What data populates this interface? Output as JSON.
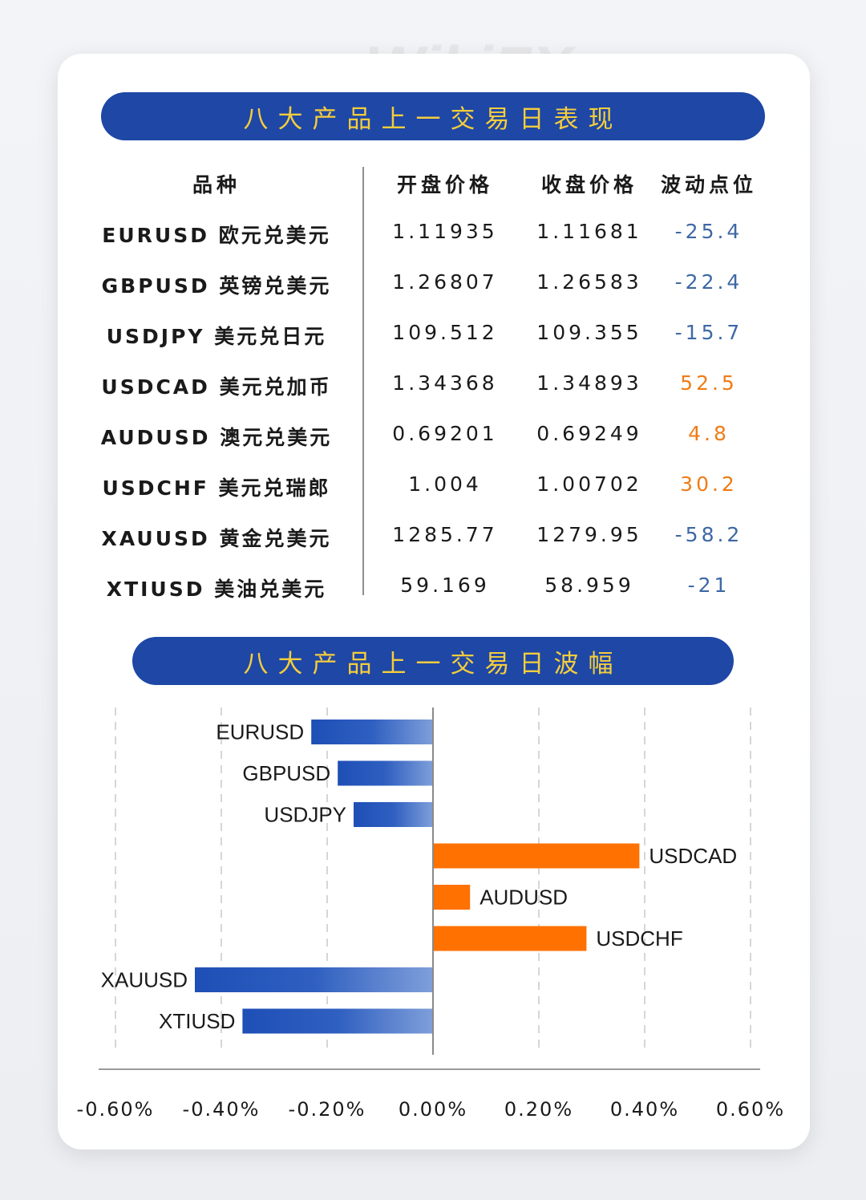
{
  "table": {
    "title": "八大产品上一交易日表现",
    "headers": [
      "品种",
      "开盘价格",
      "收盘价格",
      "波动点位"
    ],
    "rows": [
      {
        "product": "EURUSD 欧元兑美元",
        "open": "1.11935",
        "close": "1.11681",
        "change": "-25.4"
      },
      {
        "product": "GBPUSD 英镑兑美元",
        "open": "1.26807",
        "close": "1.26583",
        "change": "-22.4"
      },
      {
        "product": "USDJPY 美元兑日元",
        "open": "109.512",
        "close": "109.355",
        "change": "-15.7"
      },
      {
        "product": "USDCAD 美元兑加币",
        "open": "1.34368",
        "close": "1.34893",
        "change": "52.5"
      },
      {
        "product": "AUDUSD 澳元兑美元",
        "open": "0.69201",
        "close": "0.69249",
        "change": "4.8"
      },
      {
        "product": "USDCHF 美元兑瑞郎",
        "open": "1.004",
        "close": "1.00702",
        "change": "30.2"
      },
      {
        "product": "XAUUSD 黄金兑美元",
        "open": "1285.77",
        "close": "1279.95",
        "change": "-58.2"
      },
      {
        "product": "XTIUSD 美油兑美元",
        "open": "59.169",
        "close": "58.959",
        "change": "-21"
      }
    ]
  },
  "chart_data": {
    "type": "bar",
    "orientation": "horizontal",
    "title": "八大产品上一交易日波幅",
    "categories": [
      "EURUSD",
      "GBPUSD",
      "USDJPY",
      "USDCAD",
      "AUDUSD",
      "USDCHF",
      "XAUUSD",
      "XTIUSD"
    ],
    "values": [
      -0.23,
      -0.18,
      -0.15,
      0.39,
      0.07,
      0.29,
      -0.45,
      -0.36
    ],
    "value_unit": "%",
    "xlim": [
      -0.6,
      0.6
    ],
    "x_ticks": [
      "-0.60%",
      "-0.40%",
      "-0.20%",
      "0.00%",
      "0.20%",
      "0.40%",
      "0.60%"
    ],
    "x_tick_values": [
      -0.6,
      -0.4,
      -0.2,
      0.0,
      0.2,
      0.4,
      0.6
    ],
    "grid": "vertical dashed",
    "colors": {
      "negative": "#1f4fb4",
      "positive": "#ff7100"
    }
  },
  "watermark": "WikiFX"
}
